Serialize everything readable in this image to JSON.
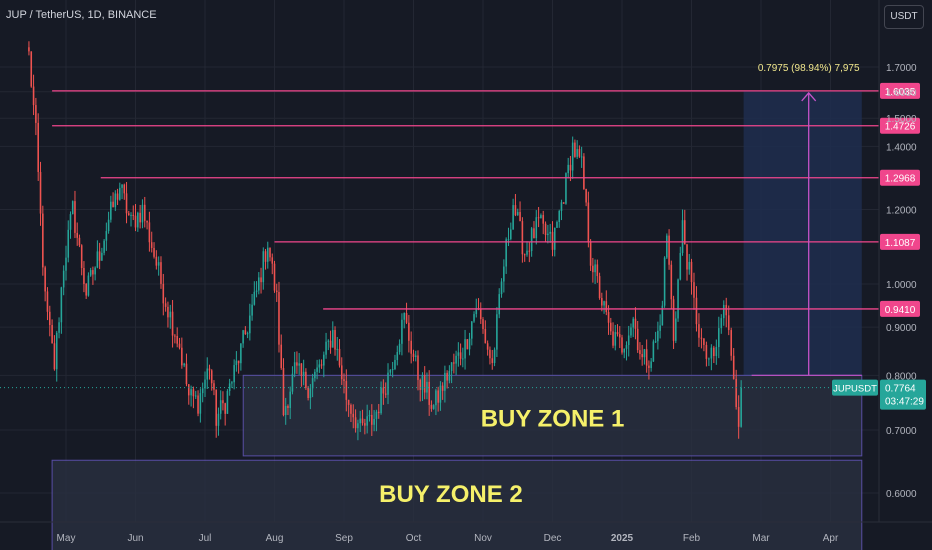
{
  "header": {
    "symbol_title": "JUP / TetherUS, 1D, BINANCE",
    "currency_button": "USDT"
  },
  "colors": {
    "background": "#161a25",
    "grid": "#232733",
    "up": "#26a69a",
    "down": "#ef5350",
    "level_line": "#f0468c",
    "zone_fill": "#2a3040",
    "zone_border": "#6a5cc8",
    "zone_text": "#f5f06a",
    "target_box": "#1f2e4f",
    "target_arrow": "#c553c9",
    "axis_text": "#b2b5be",
    "price_badge": "#26a69a"
  },
  "chart_data": {
    "type": "candlestick",
    "title": "JUP / TetherUS, 1D, BINANCE",
    "y_axis": {
      "ticks": [
        0.6,
        0.7,
        0.8,
        0.9,
        1.0,
        1.2,
        1.4,
        1.5,
        1.6,
        1.7
      ],
      "tick_labels": [
        "0.6000",
        "0.7000",
        "0.8000",
        "0.9000",
        "1.0000",
        "1.2000",
        "1.4000",
        "1.5000",
        "1.6000",
        "1.7000"
      ],
      "scale": "log"
    },
    "x_axis": {
      "tick_labels": [
        "May",
        "Jun",
        "Jul",
        "Aug",
        "Sep",
        "Oct",
        "Nov",
        "Dec",
        "2025",
        "Feb",
        "Mar",
        "Apr"
      ]
    },
    "levels": [
      {
        "value": 1.6035,
        "label": "1.6035",
        "from_month": -0.2
      },
      {
        "value": 1.4726,
        "label": "1.4726",
        "from_month": -0.2
      },
      {
        "value": 1.2968,
        "label": "1.2968",
        "from_month": 0.5
      },
      {
        "value": 1.1087,
        "label": "1.1087",
        "from_month": 3.0
      },
      {
        "value": 0.941,
        "label": "0.9410",
        "from_month": 3.7
      }
    ],
    "zones": [
      {
        "label": "BUY ZONE 1",
        "from": 0.657,
        "to": 0.8,
        "x_start_month": 2.55,
        "x_end_month": 11.45
      },
      {
        "label": "BUY ZONE 2",
        "from": 0.5,
        "to": 0.65,
        "x_start_month": -0.2,
        "x_end_month": 11.45
      }
    ],
    "target": {
      "from": 0.8,
      "to": 1.6035,
      "x_start_month": 9.75,
      "x_end_month": 11.45,
      "label": "0.7975 (98.94%) 7,975"
    },
    "last_price": {
      "symbol": "JUPUSDT",
      "value": "0.7764",
      "countdown": "03:47:29"
    },
    "anchors": [
      [
        "2024-04-15",
        1.75
      ],
      [
        "2024-04-18",
        1.44
      ],
      [
        "2024-04-22",
        0.96
      ],
      [
        "2024-04-26",
        0.82
      ],
      [
        "2024-04-30",
        1.05
      ],
      [
        "2024-05-04",
        1.2
      ],
      [
        "2024-05-10",
        0.98
      ],
      [
        "2024-05-16",
        1.08
      ],
      [
        "2024-05-20",
        1.17
      ],
      [
        "2024-05-25",
        1.27
      ],
      [
        "2024-05-30",
        1.16
      ],
      [
        "2024-06-04",
        1.2
      ],
      [
        "2024-06-08",
        1.1
      ],
      [
        "2024-06-14",
        0.96
      ],
      [
        "2024-06-20",
        0.86
      ],
      [
        "2024-06-24",
        0.76
      ],
      [
        "2024-06-28",
        0.75
      ],
      [
        "2024-07-03",
        0.82
      ],
      [
        "2024-07-06",
        0.72
      ],
      [
        "2024-07-10",
        0.75
      ],
      [
        "2024-07-17",
        0.85
      ],
      [
        "2024-07-24",
        0.98
      ],
      [
        "2024-07-29",
        1.11
      ],
      [
        "2024-08-02",
        0.96
      ],
      [
        "2024-08-05",
        0.73
      ],
      [
        "2024-08-10",
        0.81
      ],
      [
        "2024-08-16",
        0.78
      ],
      [
        "2024-08-22",
        0.82
      ],
      [
        "2024-08-27",
        0.89
      ],
      [
        "2024-09-02",
        0.76
      ],
      [
        "2024-09-08",
        0.7
      ],
      [
        "2024-09-14",
        0.72
      ],
      [
        "2024-09-20",
        0.8
      ],
      [
        "2024-09-27",
        0.92
      ],
      [
        "2024-10-03",
        0.8
      ],
      [
        "2024-10-10",
        0.74
      ],
      [
        "2024-10-16",
        0.8
      ],
      [
        "2024-10-24",
        0.86
      ],
      [
        "2024-10-29",
        0.95
      ],
      [
        "2024-11-05",
        0.82
      ],
      [
        "2024-11-10",
        1.05
      ],
      [
        "2024-11-14",
        1.22
      ],
      [
        "2024-11-19",
        1.08
      ],
      [
        "2024-11-25",
        1.16
      ],
      [
        "2024-12-01",
        1.1
      ],
      [
        "2024-12-07",
        1.28
      ],
      [
        "2024-12-10",
        1.4
      ],
      [
        "2024-12-14",
        1.33
      ],
      [
        "2024-12-18",
        1.07
      ],
      [
        "2024-12-22",
        0.98
      ],
      [
        "2024-12-27",
        0.88
      ],
      [
        "2025-01-01",
        0.86
      ],
      [
        "2025-01-06",
        0.92
      ],
      [
        "2025-01-10",
        0.83
      ],
      [
        "2025-01-14",
        0.84
      ],
      [
        "2025-01-18",
        0.9
      ],
      [
        "2025-01-21",
        1.13
      ],
      [
        "2025-01-24",
        0.88
      ],
      [
        "2025-01-28",
        1.15
      ],
      [
        "2025-02-02",
        0.95
      ],
      [
        "2025-02-06",
        0.84
      ],
      [
        "2025-02-10",
        0.83
      ],
      [
        "2025-02-14",
        0.95
      ],
      [
        "2025-02-17",
        0.85
      ],
      [
        "2025-02-20",
        0.72
      ],
      [
        "2025-02-21",
        0.776
      ]
    ]
  }
}
